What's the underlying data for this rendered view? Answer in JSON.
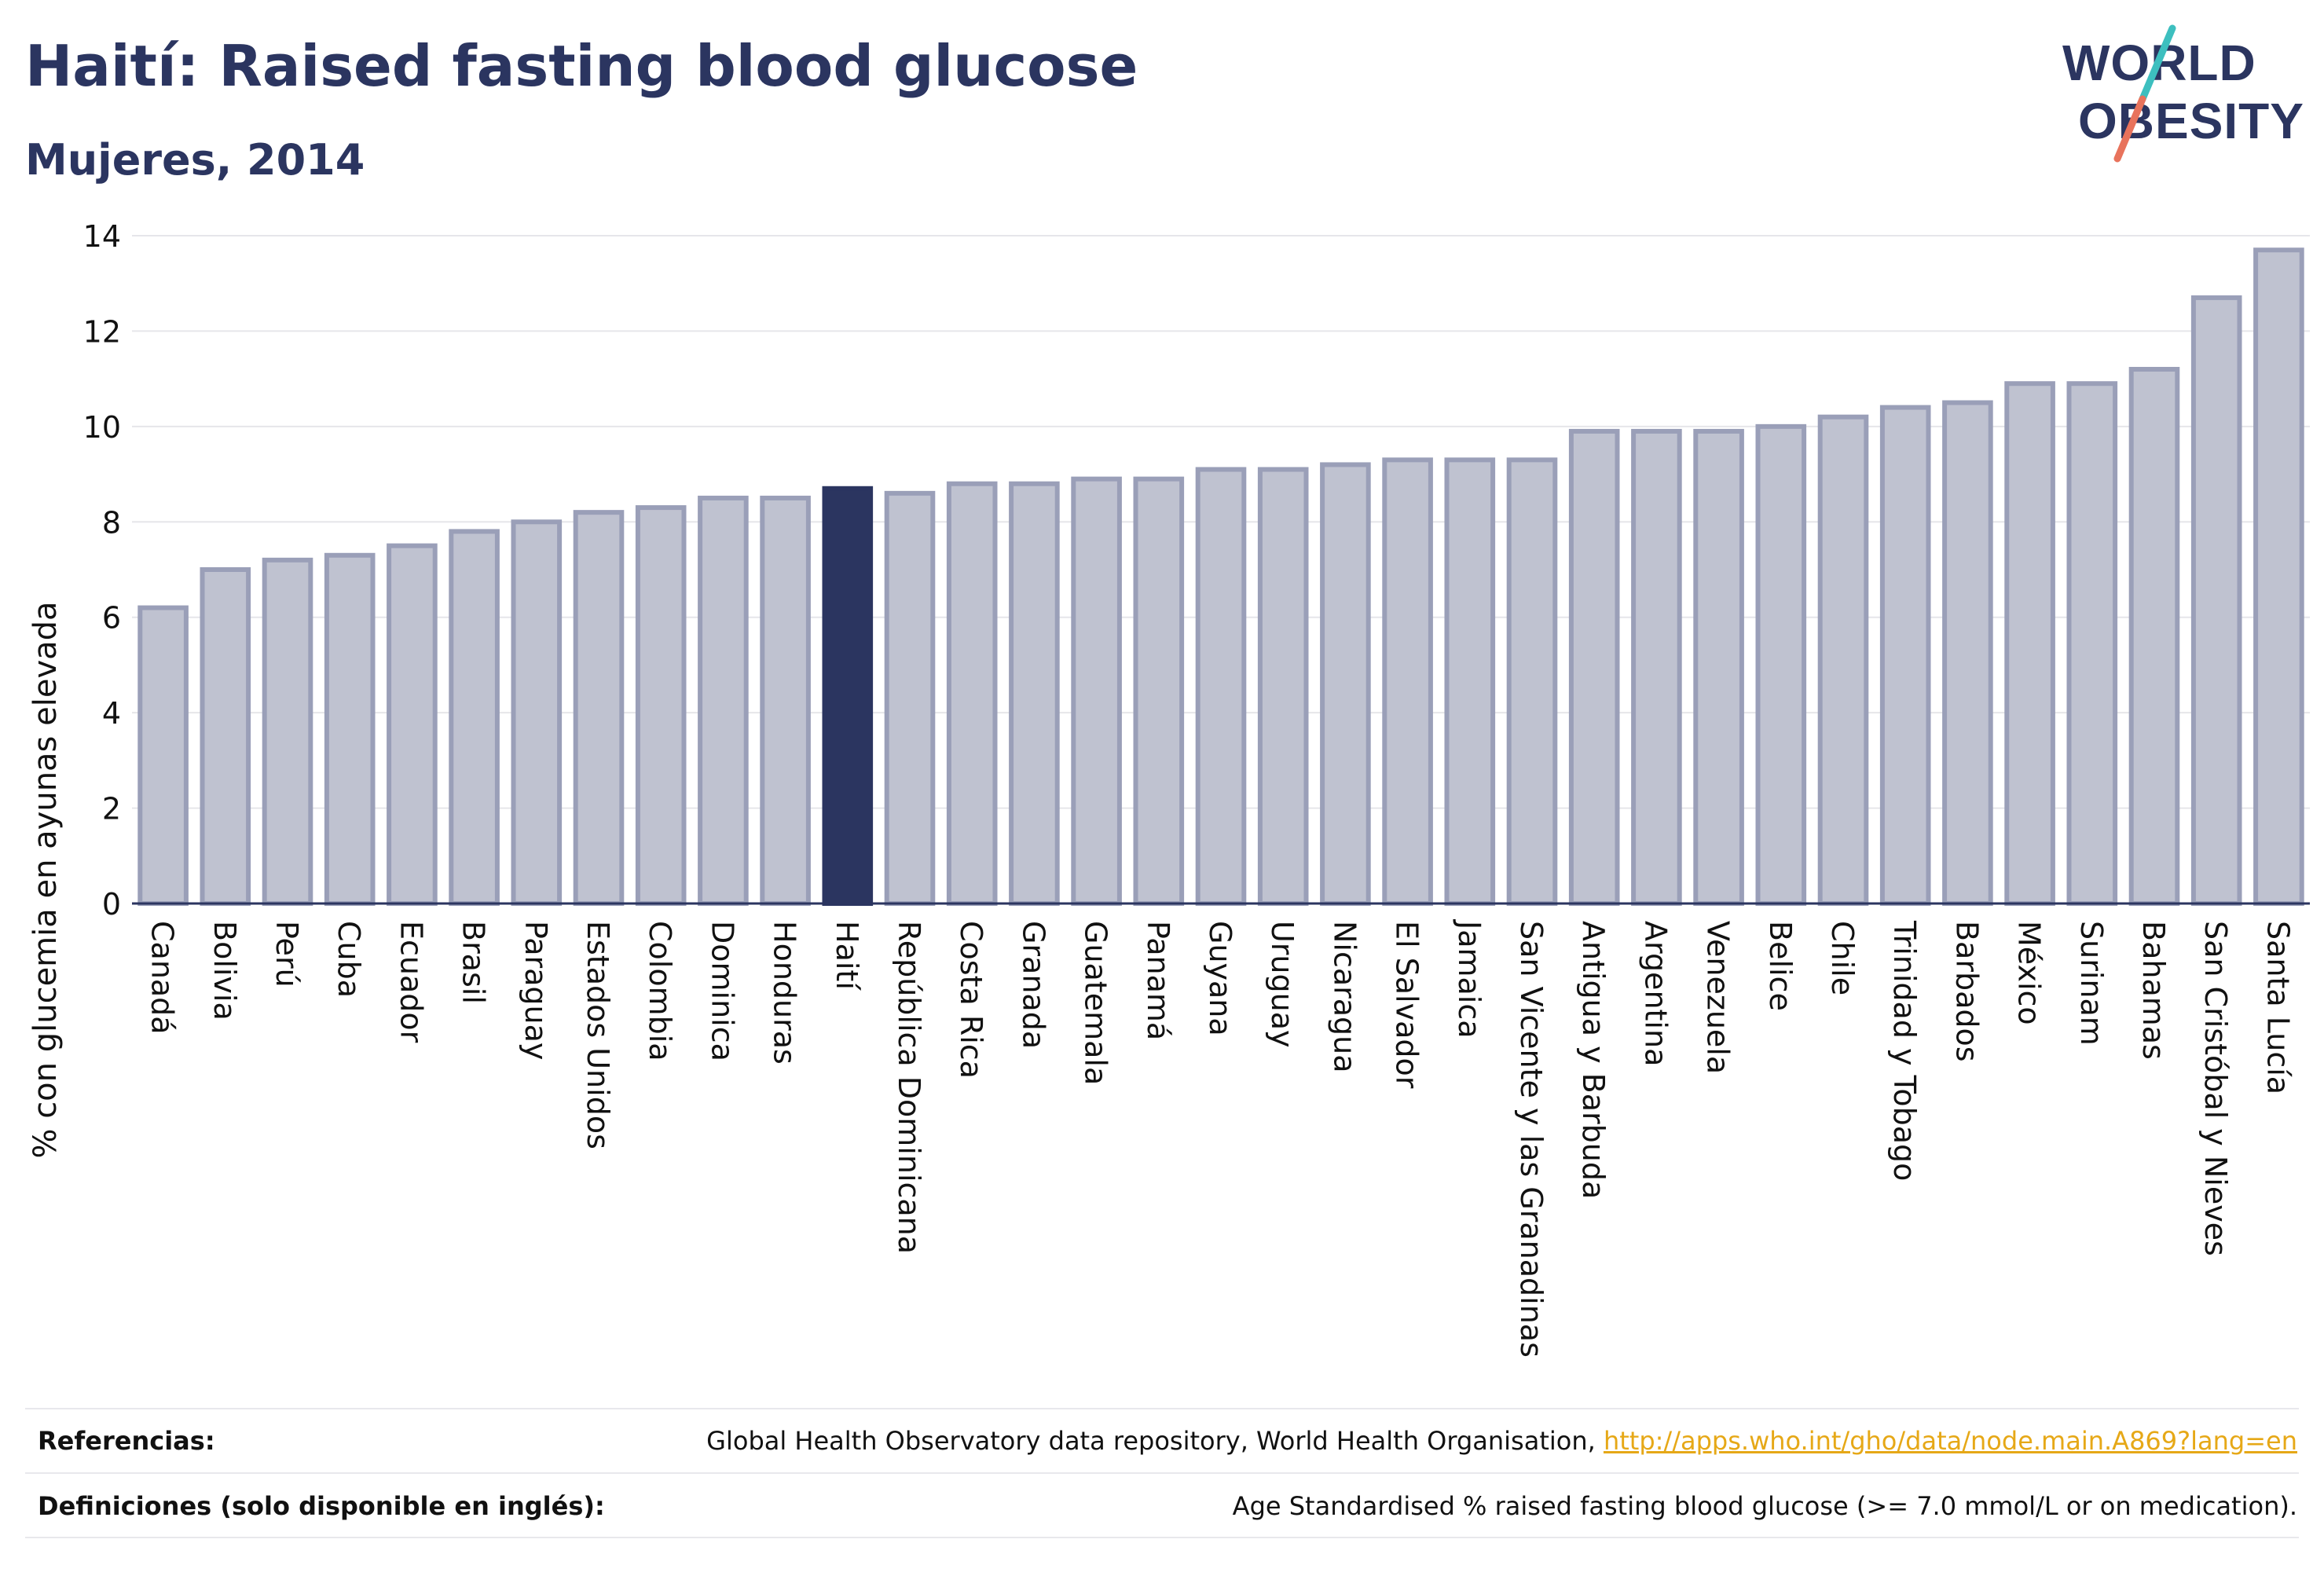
{
  "header": {
    "title": "Haití: Raised fasting blood glucose",
    "subtitle": "Mujeres, 2014"
  },
  "logo": {
    "line1": "WORLD",
    "line2": "OBESITY"
  },
  "colors": {
    "title": "#2b3560",
    "bar_default": "#bfc2d0",
    "bar_default_border": "#9a9fb8",
    "bar_highlight": "#2b3560",
    "logo_slash_top": "#3dbfbf",
    "logo_slash_bottom": "#e8735c"
  },
  "chart_data": {
    "type": "bar",
    "ylabel": "% con glucemia en ayunas elevada",
    "xlabel": "",
    "ylim": [
      0,
      14
    ],
    "yticks": [
      0,
      2,
      4,
      6,
      8,
      10,
      12,
      14
    ],
    "grid": true,
    "highlight": "Haití",
    "categories": [
      "Canadá",
      "Bolivia",
      "Perú",
      "Cuba",
      "Ecuador",
      "Brasil",
      "Paraguay",
      "Estados Unidos",
      "Colombia",
      "Dominica",
      "Honduras",
      "Haití",
      "República Dominicana",
      "Costa Rica",
      "Granada",
      "Guatemala",
      "Panamá",
      "Guyana",
      "Uruguay",
      "Nicaragua",
      "El Salvador",
      "Jamaica",
      "San Vicente y las Granadinas",
      "Antigua y Barbuda",
      "Argentina",
      "Venezuela",
      "Belice",
      "Chile",
      "Trinidad y Tobago",
      "Barbados",
      "México",
      "Surinam",
      "Bahamas",
      "San Cristóbal y Nieves",
      "Santa Lucía"
    ],
    "values": [
      6.2,
      7.0,
      7.2,
      7.3,
      7.5,
      7.8,
      8.0,
      8.2,
      8.3,
      8.5,
      8.5,
      8.7,
      8.6,
      8.8,
      8.8,
      8.9,
      8.9,
      9.1,
      9.1,
      9.2,
      9.3,
      9.3,
      9.3,
      9.9,
      9.9,
      9.9,
      10.0,
      10.2,
      10.4,
      10.5,
      10.9,
      10.9,
      11.2,
      12.7,
      13.7
    ]
  },
  "footer": {
    "references_label": "Referencias:",
    "references_text": "Global Health Observatory data repository, World Health Organisation, ",
    "references_link": "http://apps.who.int/gho/data/node.main.A869?lang=en",
    "definitions_label": "Definiciones (solo disponible en inglés):",
    "definitions_text": "Age Standardised % raised fasting blood glucose (>= 7.0 mmol/L or on medication)."
  }
}
